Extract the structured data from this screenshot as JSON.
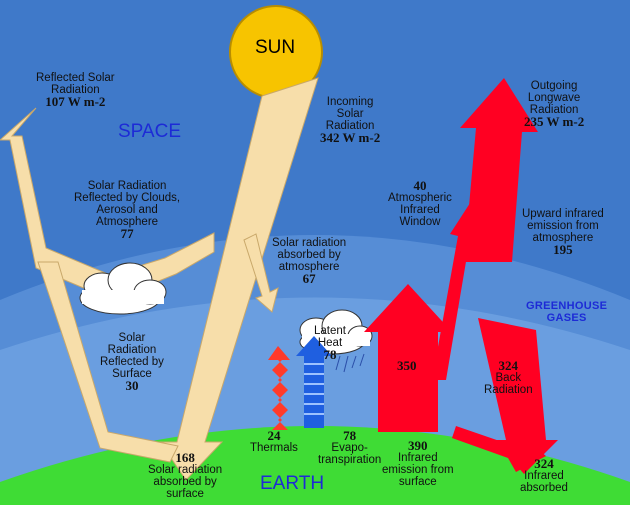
{
  "regions": {
    "space": "SPACE",
    "earth": "EARTH",
    "greenhouse": "GREENHOUSE\nGASES",
    "sun": "SUN"
  },
  "flows": {
    "reflected_solar": {
      "label": "Reflected Solar\nRadiation",
      "value": "107 W m-2"
    },
    "incoming_solar": {
      "label": "Incoming\nSolar\nRadiation",
      "value": "342 W m-2"
    },
    "outgoing_longwave": {
      "label": "Outgoing\nLongwave\nRadiation",
      "value": "235 W m-2"
    },
    "reflected_clouds": {
      "label": "Solar Radiation\nReflected by Clouds,\nAerosol and\nAtmosphere",
      "value": "77"
    },
    "window": {
      "value": "40",
      "label": "Atmospheric\nInfrared\nWindow"
    },
    "upward_ir_atm": {
      "label": "Upward infrared\nemission from\natmosphere",
      "value": "195"
    },
    "absorbed_atm": {
      "label": "Solar radiation\nabsorbed by\natmosphere",
      "value": "67"
    },
    "latent_heat": {
      "label": "Latent\nHeat",
      "value": "78"
    },
    "reflected_surface": {
      "label": "Solar\nRadiation\nReflected by\nSurface",
      "value": "30"
    },
    "surface_emission_350": {
      "value": "350"
    },
    "back_radiation": {
      "value": "324",
      "label": "Back\nRadiation"
    },
    "absorbed_surface": {
      "value": "168",
      "label": "Solar radiation\nabsorbed by\nsurface"
    },
    "thermals": {
      "value": "24",
      "label": "Thermals"
    },
    "evapotranspiration": {
      "value": "78",
      "label": "Evapo-\ntranspiration"
    },
    "ir_emission_surface": {
      "value": "390",
      "label": "Infrared\nemission from\nsurface"
    },
    "ir_absorbed": {
      "value": "324",
      "label": "Infrared\nabsorbed"
    }
  },
  "colors": {
    "solar": "#f7deaa",
    "infrared": "#ff0022",
    "earth": "#3fdc35",
    "sun": "#f7c400",
    "space": "#3f79c9",
    "atmosphere": "#5b91d8",
    "thermals": "#ff3a2a",
    "latent": "#1f5fe0"
  }
}
